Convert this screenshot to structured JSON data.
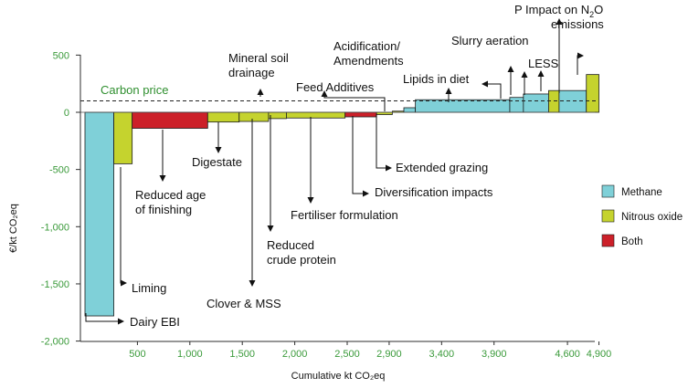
{
  "chart_data": {
    "type": "bar",
    "subtype": "marginal-abatement-cost-curve",
    "title": "",
    "xlabel": "Cumulative kt CO₂eq",
    "ylabel": "€/kt CO₂eq",
    "xlim": [
      0,
      4950
    ],
    "ylim": [
      -2000,
      500
    ],
    "x_ticks": [
      "500",
      "1,000",
      "1,500",
      "2,000",
      "2,500",
      "2,900",
      "3,400",
      "3,900",
      "4,600",
      "4,900"
    ],
    "x_tick_values": [
      500,
      1000,
      1500,
      2000,
      2500,
      2900,
      3400,
      3900,
      4600,
      4900
    ],
    "y_ticks": [
      "500",
      "0",
      "-500",
      "-1,000",
      "-1,500",
      "-2,000"
    ],
    "y_tick_values": [
      500,
      0,
      -500,
      -1000,
      -1500,
      -2000
    ],
    "carbon_price": {
      "label": "Carbon price",
      "value": 100
    },
    "legend_position": "right",
    "colors": {
      "Methane": "#7fd0d8",
      "Nitrous oxide": "#c5d32e",
      "Both": "#cc2029"
    },
    "legend": [
      {
        "name": "Methane",
        "color": "#7fd0d8"
      },
      {
        "name": "Nitrous oxide",
        "color": "#c5d32e"
      },
      {
        "name": "Both",
        "color": "#cc2029"
      }
    ],
    "measures": [
      {
        "label": "Dairy EBI",
        "type": "Methane",
        "x0": 0,
        "x1": 275,
        "y": -1780
      },
      {
        "label": "Liming",
        "type": "Nitrous oxide",
        "x0": 275,
        "x1": 450,
        "y": -450
      },
      {
        "label": "Reduced age of finishing",
        "type": "Both",
        "x0": 450,
        "x1": 1170,
        "y": -140
      },
      {
        "label": "Digestate",
        "type": "Nitrous oxide",
        "x0": 1170,
        "x1": 1470,
        "y": -85
      },
      {
        "label": "Clover & MSS",
        "type": "Nitrous oxide",
        "x0": 1470,
        "x1": 1750,
        "y": -80
      },
      {
        "label": "Reduced crude protein",
        "type": "Nitrous oxide",
        "x0": 1750,
        "x1": 1920,
        "y": -55
      },
      {
        "label": "Fertiliser formulation",
        "type": "Nitrous oxide",
        "x0": 1920,
        "x1": 2480,
        "y": -50
      },
      {
        "label": "Diversification impacts",
        "type": "Both",
        "x0": 2480,
        "x1": 2780,
        "y": -40
      },
      {
        "label": "Extended grazing",
        "type": "Nitrous oxide",
        "x0": 2780,
        "x1": 2930,
        "y": -20
      },
      {
        "label": "Mineral soil drainage",
        "type": "Nitrous oxide",
        "x0": 2930,
        "x1": 3040,
        "y": 10
      },
      {
        "label": "Feed Additives",
        "type": "Methane",
        "x0": 3040,
        "x1": 3150,
        "y": 40
      },
      {
        "label": "Lipids in diet",
        "type": "Methane",
        "x0": 3150,
        "x1": 4050,
        "y": 110
      },
      {
        "label": "Acidification/ Amendments",
        "type": "Methane",
        "x0": 4050,
        "x1": 4180,
        "y": 130
      },
      {
        "label": "Slurry aeration",
        "type": "Methane",
        "x0": 4180,
        "x1": 4420,
        "y": 160
      },
      {
        "label": "LESS",
        "type": "Nitrous oxide",
        "x0": 4420,
        "x1": 4520,
        "y": 190
      },
      {
        "label": "",
        "type": "Methane",
        "x0": 4520,
        "x1": 4780,
        "y": 190
      },
      {
        "label": "P Impact on N₂O emissions",
        "type": "Nitrous oxide",
        "x0": 4780,
        "x1": 4900,
        "y": 330
      }
    ]
  }
}
